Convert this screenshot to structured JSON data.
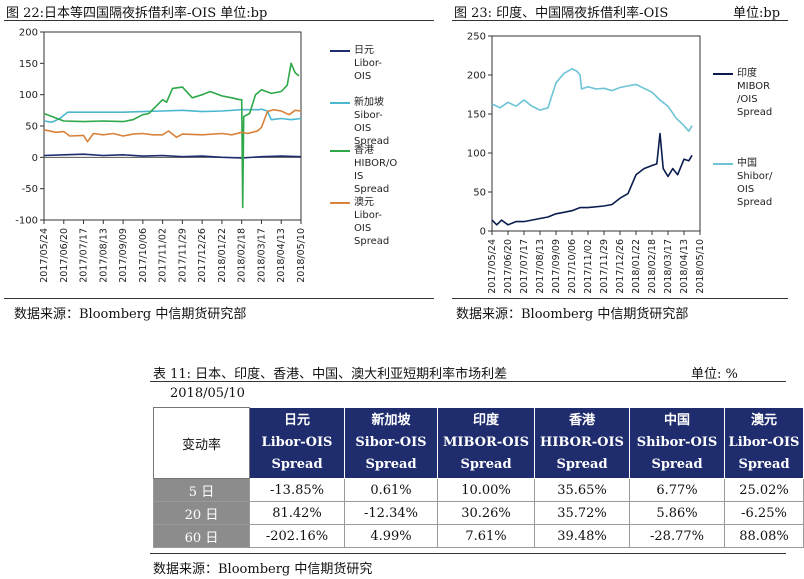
{
  "left_panel": {
    "title": "图 22:日本等四国隔夜拆借利率-OIS  单位:bp",
    "source": "数据来源：Bloomberg  中信期货研究部"
  },
  "right_panel": {
    "title": "图 23:  印度、中国隔夜拆借利率-OIS",
    "unit": "单位:bp",
    "source": "数据来源：Bloomberg  中信期货研究部"
  },
  "colors": {
    "japan": "#1f2d6e",
    "singapore": "#4bb8cf",
    "hongkong": "#2ea84a",
    "australia": "#d9823b",
    "india": "#0b1d4f",
    "china": "#6cc4d6",
    "header_bg": "#1f2d6e",
    "row_label_bg": "#8c8c8c"
  },
  "chart_data": [
    {
      "type": "line",
      "title": "日本等四国隔夜拆借利率-OIS",
      "ylim": [
        -100,
        200
      ],
      "yticks": [
        "200",
        "150",
        "100",
        "50",
        "0",
        "-50",
        "-100"
      ],
      "xticks": [
        "2017/05/24",
        "2017/06/20",
        "2017/07/17",
        "2017/08/13",
        "2017/09/09",
        "2017/10/06",
        "2017/11/02",
        "2017/11/29",
        "2017/12/26",
        "2018/01/22",
        "2018/02/18",
        "2018/03/17",
        "2018/04/13",
        "2018/05/10"
      ],
      "series": [
        {
          "name": "日元 Libor-OIS",
          "label": "日元\nLibor-OIS",
          "color_key": "japan",
          "points": [
            [
              0,
              3
            ],
            [
              1,
              4
            ],
            [
              2,
              5
            ],
            [
              3,
              3
            ],
            [
              4,
              4
            ],
            [
              5,
              2
            ],
            [
              6,
              3
            ],
            [
              7,
              1
            ],
            [
              8,
              2
            ],
            [
              9,
              0
            ],
            [
              10,
              -1
            ],
            [
              11,
              1
            ],
            [
              12,
              2
            ],
            [
              13,
              1
            ]
          ]
        },
        {
          "name": "新加坡 Sibor-OIS Spread",
          "label": "新加坡\nSibor-OIS\nSpread",
          "color_key": "singapore",
          "points": [
            [
              0,
              58
            ],
            [
              0.4,
              56
            ],
            [
              0.8,
              62
            ],
            [
              1.2,
              72
            ],
            [
              2,
              72
            ],
            [
              3,
              72
            ],
            [
              4,
              72
            ],
            [
              5,
              73
            ],
            [
              6,
              74
            ],
            [
              7,
              75
            ],
            [
              8,
              73
            ],
            [
              9,
              74
            ],
            [
              10,
              76
            ],
            [
              10.9,
              76
            ],
            [
              11,
              77
            ],
            [
              11.3,
              74
            ],
            [
              11.5,
              60
            ],
            [
              12,
              62
            ],
            [
              12.5,
              60
            ],
            [
              13,
              62
            ]
          ]
        },
        {
          "name": "香港 HIBOR/OIS Spread",
          "label": "香港\nHIBOR/O\nIS\nSpread",
          "color_key": "hongkong",
          "points": [
            [
              0,
              70
            ],
            [
              0.5,
              64
            ],
            [
              1,
              58
            ],
            [
              2,
              57
            ],
            [
              3,
              58
            ],
            [
              4,
              57
            ],
            [
              4.5,
              60
            ],
            [
              5,
              68
            ],
            [
              5.3,
              70
            ],
            [
              6,
              92
            ],
            [
              6.2,
              88
            ],
            [
              6.5,
              110
            ],
            [
              7,
              112
            ],
            [
              7.5,
              95
            ],
            [
              8,
              100
            ],
            [
              8.4,
              105
            ],
            [
              9,
              98
            ],
            [
              9.5,
              95
            ],
            [
              9.9,
              92
            ],
            [
              10,
              92
            ],
            [
              10.05,
              -80
            ],
            [
              10.1,
              65
            ],
            [
              10.4,
              70
            ],
            [
              10.7,
              100
            ],
            [
              11,
              108
            ],
            [
              11.5,
              102
            ],
            [
              12,
              105
            ],
            [
              12.3,
              115
            ],
            [
              12.5,
              150
            ],
            [
              12.7,
              135
            ],
            [
              12.9,
              130
            ]
          ]
        },
        {
          "name": "澳元 Libor-OIS Spread",
          "label": "澳元\nLibor-OIS\nSpread",
          "color_key": "australia",
          "points": [
            [
              0,
              44
            ],
            [
              0.6,
              40
            ],
            [
              1,
              41
            ],
            [
              1.3,
              34
            ],
            [
              2,
              35
            ],
            [
              2.2,
              25
            ],
            [
              2.5,
              38
            ],
            [
              3,
              36
            ],
            [
              3.5,
              38
            ],
            [
              4,
              34
            ],
            [
              4.5,
              37
            ],
            [
              5,
              38
            ],
            [
              5.5,
              36
            ],
            [
              6,
              36
            ],
            [
              6.3,
              42
            ],
            [
              6.7,
              32
            ],
            [
              7,
              37
            ],
            [
              8,
              36
            ],
            [
              9,
              38
            ],
            [
              9.5,
              36
            ],
            [
              10,
              40
            ],
            [
              10.3,
              38
            ],
            [
              10.8,
              42
            ],
            [
              11,
              48
            ],
            [
              11.3,
              73
            ],
            [
              11.6,
              76
            ],
            [
              12,
              74
            ],
            [
              12.4,
              68
            ],
            [
              12.7,
              75
            ],
            [
              13,
              74
            ]
          ]
        }
      ]
    },
    {
      "type": "line",
      "title": "印度、中国隔夜拆借利率-OIS",
      "ylim": [
        0,
        250
      ],
      "yticks": [
        "250",
        "200",
        "150",
        "100",
        "50",
        "0"
      ],
      "xticks": [
        "2017/05/24",
        "2017/06/20",
        "2017/07/17",
        "2017/08/13",
        "2017/09/09",
        "2017/10/06",
        "2017/11/02",
        "2017/11/29",
        "2017/12/26",
        "2018/01/22",
        "2018/02/18",
        "2018/03/17",
        "2018/04/13",
        "2018/05/10"
      ],
      "series": [
        {
          "name": "印度 MIBOR/OIS Spread",
          "label": "印度\nMIBOR\n/OIS\nSpread",
          "color_key": "india",
          "points": [
            [
              0,
              14
            ],
            [
              0.3,
              8
            ],
            [
              0.6,
              14
            ],
            [
              1,
              8
            ],
            [
              1.5,
              12
            ],
            [
              2,
              12
            ],
            [
              3,
              16
            ],
            [
              3.5,
              18
            ],
            [
              4,
              22
            ],
            [
              4.5,
              24
            ],
            [
              5,
              26
            ],
            [
              5.5,
              30
            ],
            [
              6,
              30
            ],
            [
              7,
              32
            ],
            [
              7.5,
              34
            ],
            [
              8,
              42
            ],
            [
              8.5,
              48
            ],
            [
              9,
              72
            ],
            [
              9.5,
              80
            ],
            [
              10,
              84
            ],
            [
              10.3,
              86
            ],
            [
              10.5,
              125
            ],
            [
              10.7,
              80
            ],
            [
              11,
              70
            ],
            [
              11.3,
              80
            ],
            [
              11.6,
              72
            ],
            [
              12,
              92
            ],
            [
              12.3,
              90
            ],
            [
              12.5,
              97
            ]
          ]
        },
        {
          "name": "中国 Shibor/OIS Spread",
          "label": "中国\nShibor/\nOIS\nSpread",
          "color_key": "china",
          "points": [
            [
              0,
              163
            ],
            [
              0.5,
              158
            ],
            [
              1,
              165
            ],
            [
              1.5,
              160
            ],
            [
              2,
              168
            ],
            [
              2.5,
              160
            ],
            [
              3,
              155
            ],
            [
              3.5,
              158
            ],
            [
              4,
              190
            ],
            [
              4.5,
              202
            ],
            [
              5,
              208
            ],
            [
              5.3,
              205
            ],
            [
              5.5,
              200
            ],
            [
              5.6,
              182
            ],
            [
              6,
              185
            ],
            [
              6.5,
              182
            ],
            [
              7,
              183
            ],
            [
              7.5,
              180
            ],
            [
              8,
              184
            ],
            [
              8.5,
              186
            ],
            [
              9,
              188
            ],
            [
              9.5,
              183
            ],
            [
              10,
              178
            ],
            [
              10.5,
              168
            ],
            [
              11,
              160
            ],
            [
              11.5,
              145
            ],
            [
              12,
              135
            ],
            [
              12.3,
              128
            ],
            [
              12.5,
              135
            ]
          ]
        }
      ]
    },
    {
      "type": "table",
      "title": "表 11:  日本、印度、香港、中国、澳大利亚短期利率市场利差",
      "unit": "单位:  %",
      "date": "2018/05/10",
      "corner": "变动率",
      "columns": [
        {
          "line1": "日元",
          "line2": "Libor-OIS",
          "line3": "Spread"
        },
        {
          "line1": "新加坡",
          "line2": "Sibor-OIS",
          "line3": "Spread"
        },
        {
          "line1": "印度",
          "line2": "MIBOR-OIS",
          "line3": "Spread"
        },
        {
          "line1": "香港",
          "line2": "HIBOR-OIS",
          "line3": "Spread"
        },
        {
          "line1": "中国",
          "line2": "Shibor-OIS",
          "line3": "Spread"
        },
        {
          "line1": "澳元",
          "line2": "Libor-OIS",
          "line3": "Spread"
        }
      ],
      "rows": [
        {
          "label": "5 日",
          "values": [
            "-13.85%",
            "0.61%",
            "10.00%",
            "35.65%",
            "6.77%",
            "25.02%"
          ]
        },
        {
          "label": "20 日",
          "values": [
            "81.42%",
            "-12.34%",
            "30.26%",
            "35.72%",
            "5.86%",
            "-6.25%"
          ]
        },
        {
          "label": "60 日",
          "values": [
            "-202.16%",
            "4.99%",
            "7.61%",
            "39.48%",
            "-28.77%",
            "88.08%"
          ]
        }
      ],
      "source": "数据来源：Bloomberg  中信期货研究"
    }
  ]
}
